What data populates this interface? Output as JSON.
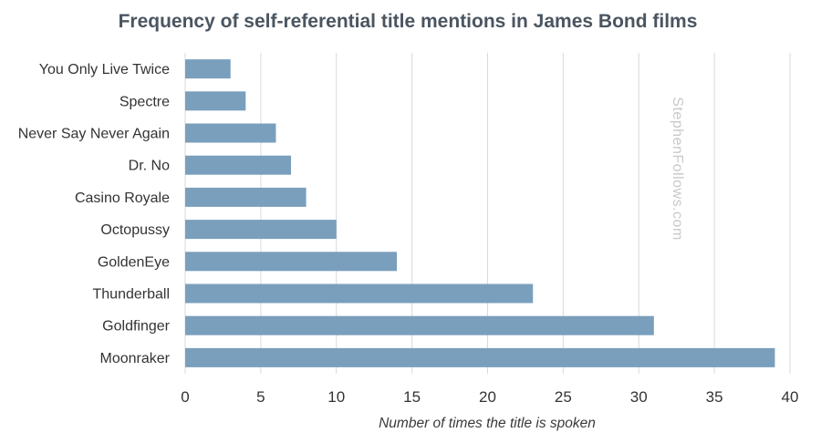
{
  "chart_data": {
    "type": "bar",
    "orientation": "horizontal",
    "title": "Frequency of self-referential title mentions in James Bond films",
    "xlabel": "Number of times the title is spoken",
    "ylabel": "",
    "categories": [
      "You Only Live Twice",
      "Spectre",
      "Never Say Never Again",
      "Dr. No",
      "Casino Royale",
      "Octopussy",
      "GoldenEye",
      "Thunderball",
      "Goldfinger",
      "Moonraker"
    ],
    "values": [
      3,
      4,
      6,
      7,
      8,
      10,
      14,
      23,
      31,
      39
    ],
    "xlim": [
      0,
      40
    ],
    "xticks": [
      0,
      5,
      10,
      15,
      20,
      25,
      30,
      35,
      40
    ],
    "grid": "vertical",
    "legend": "none",
    "bar_color": "#7a9fbd",
    "watermark": "StephenFollows.com"
  }
}
